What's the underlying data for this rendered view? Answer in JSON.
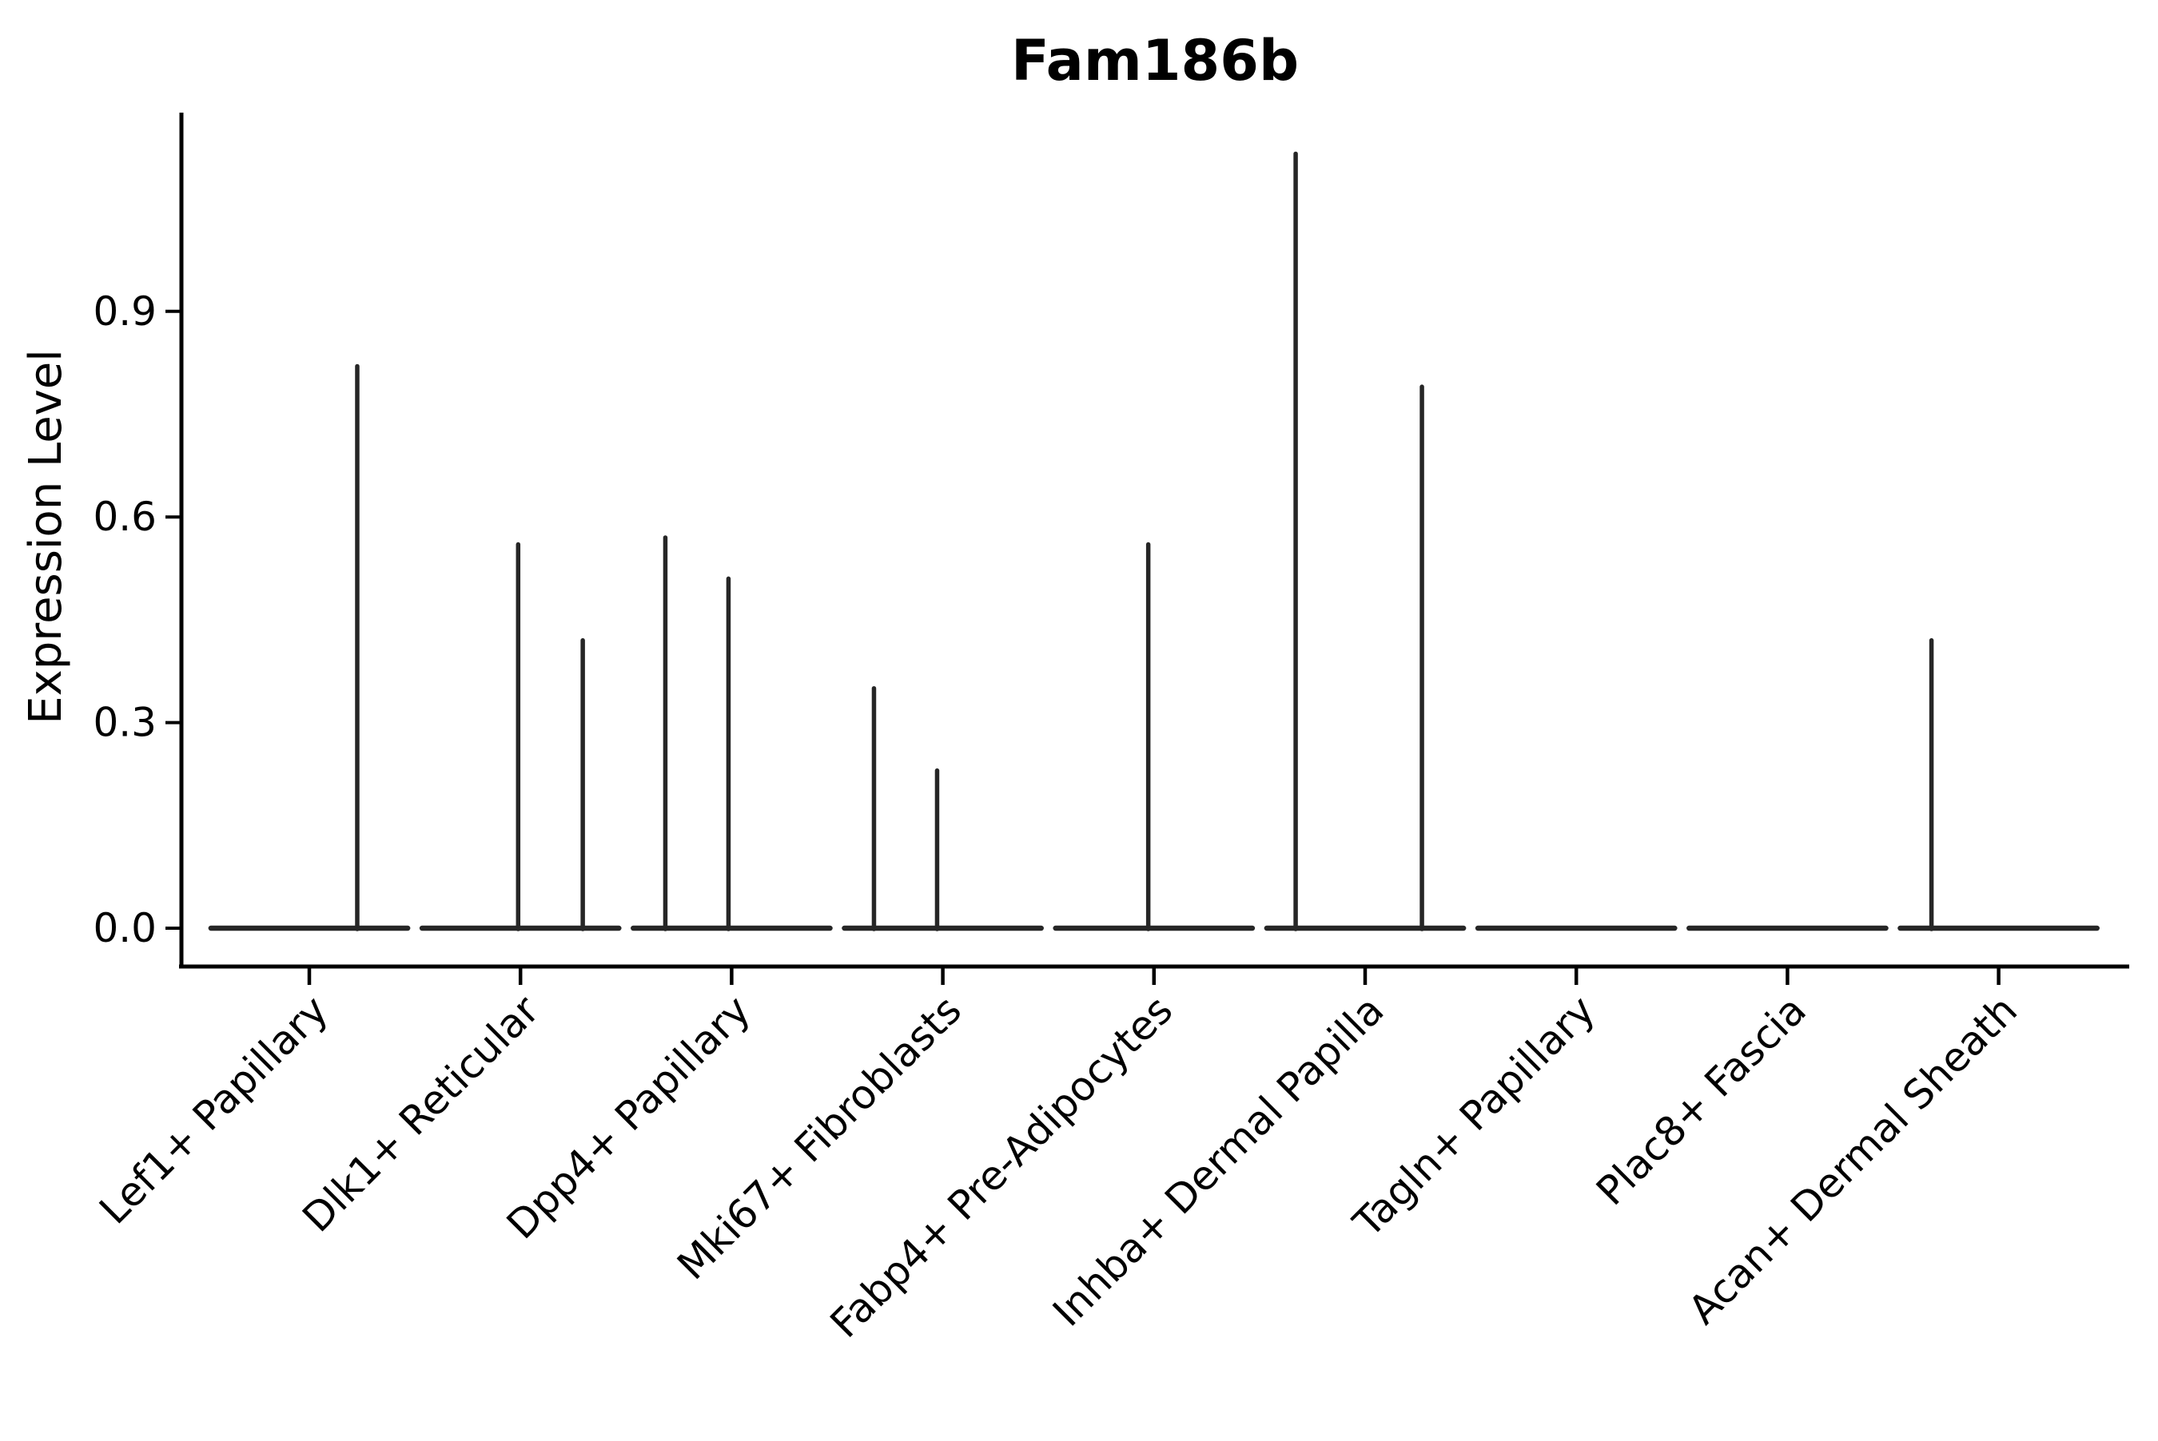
{
  "chart_data": {
    "type": "violin",
    "title": "Fam186b",
    "ylabel": "Expression Level",
    "xlabel": "",
    "grid": false,
    "legend": false,
    "ylim": [
      -0.06,
      1.19
    ],
    "ytick_labels": [
      "0.0",
      "0.3",
      "0.6",
      "0.9"
    ],
    "ytick_values": [
      0.0,
      0.3,
      0.6,
      0.9
    ],
    "categories": [
      "Lef1+ Papillary",
      "Dlk1+ Reticular",
      "Dpp4+ Papillary",
      "Mki67+ Fibroblasts",
      "Fabp4+ Pre-Adipocytes",
      "Inhba+ Dermal Papilla",
      "Tagln+ Papillary",
      "Plac8+ Fascia",
      "Acan+ Dermal Sheath"
    ],
    "violins": [
      {
        "category": "Lef1+ Papillary",
        "baseline_value": 0.0,
        "spikes": [
          {
            "x_offset_frac": 0.227,
            "max_value": 0.82
          }
        ]
      },
      {
        "category": "Dlk1+ Reticular",
        "baseline_value": 0.0,
        "spikes": [
          {
            "x_offset_frac": -0.011,
            "max_value": 0.56
          },
          {
            "x_offset_frac": 0.295,
            "max_value": 0.42
          }
        ]
      },
      {
        "category": "Dpp4+ Papillary",
        "baseline_value": 0.0,
        "spikes": [
          {
            "x_offset_frac": -0.314,
            "max_value": 0.57
          },
          {
            "x_offset_frac": -0.015,
            "max_value": 0.51
          }
        ]
      },
      {
        "category": "Mki67+ Fibroblasts",
        "baseline_value": 0.0,
        "spikes": [
          {
            "x_offset_frac": -0.326,
            "max_value": 0.35
          },
          {
            "x_offset_frac": -0.027,
            "max_value": 0.23
          }
        ]
      },
      {
        "category": "Fabp4+ Pre-Adipocytes",
        "baseline_value": 0.0,
        "spikes": [
          {
            "x_offset_frac": -0.027,
            "max_value": 0.56
          }
        ]
      },
      {
        "category": "Inhba+ Dermal Papilla",
        "baseline_value": 0.0,
        "spikes": [
          {
            "x_offset_frac": -0.329,
            "max_value": 1.13
          },
          {
            "x_offset_frac": 0.269,
            "max_value": 0.79
          }
        ]
      },
      {
        "category": "Tagln+ Papillary",
        "baseline_value": 0.0,
        "spikes": []
      },
      {
        "category": "Plac8+ Fascia",
        "baseline_value": 0.0,
        "spikes": []
      },
      {
        "category": "Acan+ Dermal Sheath",
        "baseline_value": 0.0,
        "spikes": [
          {
            "x_offset_frac": -0.318,
            "max_value": 0.42
          }
        ]
      }
    ],
    "baseline_halfwidth_frac": 0.466,
    "colors": {
      "violin_line": "#262626",
      "axis": "#000000",
      "text": "#000000",
      "background": "#ffffff"
    }
  }
}
